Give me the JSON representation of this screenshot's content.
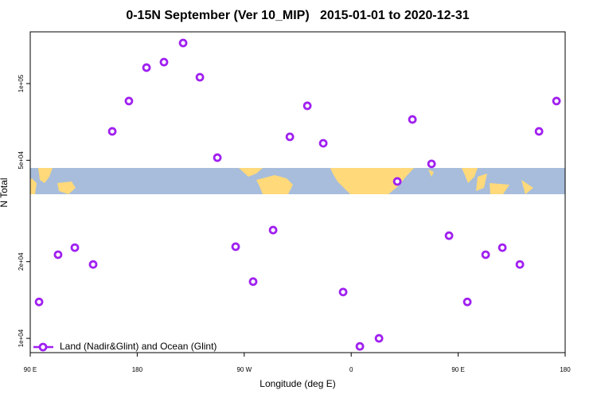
{
  "chart_data": {
    "type": "scatter",
    "title": "0-15N September (Ver 10_MIP)   2015-01-01 to 2020-12-31",
    "x_label": "Longitude (deg E)",
    "y_label": "N Total",
    "xlim": [
      90,
      540
    ],
    "xticks": [
      {
        "value": 90,
        "label": "90 E"
      },
      180,
      {
        "value": 270,
        "label": "90 W"
      },
      {
        "value": 360,
        "label": "0"
      },
      {
        "value": 450,
        "label": "90 E"
      },
      {
        "value": 540,
        "label": "180"
      }
    ],
    "ylim": [
      8790,
      159600
    ],
    "log_y": true,
    "yticks": [
      {
        "value": 10000,
        "label": "1e+04"
      },
      {
        "value": 20000,
        "label": "2e+04"
      },
      {
        "value": 50000,
        "label": "5e+04"
      },
      {
        "value": 100000,
        "label": "1e+05"
      }
    ],
    "legend_position": "bottom-left",
    "series": [
      {
        "name": "Land (Nadir&Glint) and Ocean (Glint)",
        "color": "#a020f0",
        "x": [
          97.4,
          113.4,
          127.5,
          142.9,
          159,
          173,
          187.8,
          202.5,
          218.6,
          232.7,
          247.4,
          262.8,
          277.5,
          294.3,
          308.4,
          323.1,
          336.5,
          353.2,
          367.3,
          383.4,
          398.8,
          411.5,
          427.6,
          442.3,
          457.7,
          473.1,
          487.2,
          501.9,
          518,
          532.7
        ],
        "values": [
          13900,
          21300,
          22700,
          19500,
          64900,
          85400,
          115500,
          121400,
          144300,
          105900,
          51200,
          22900,
          16700,
          26600,
          61800,
          81800,
          58300,
          15200,
          9300,
          10000,
          41300,
          72300,
          48400,
          25300,
          13900,
          21300,
          22700,
          19500,
          64900,
          85400
        ]
      }
    ]
  }
}
